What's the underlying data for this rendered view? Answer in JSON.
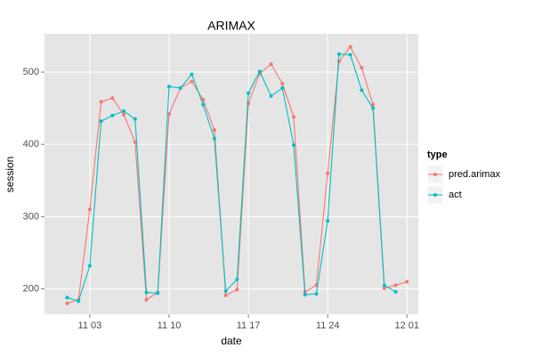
{
  "chart_data": {
    "type": "line",
    "title": "ARIMAX",
    "x_label": "date",
    "y_label": "session",
    "x": [
      "11 01",
      "11 02",
      "11 03",
      "11 04",
      "11 05",
      "11 06",
      "11 07",
      "11 08",
      "11 09",
      "11 10",
      "11 11",
      "11 12",
      "11 13",
      "11 14",
      "11 15",
      "11 16",
      "11 17",
      "11 18",
      "11 19",
      "11 20",
      "11 21",
      "11 22",
      "11 23",
      "11 24",
      "11 25",
      "11 26",
      "11 27",
      "11 28",
      "11 29",
      "11 30",
      "12 01"
    ],
    "series": [
      {
        "name": "pred.arimax",
        "color": "#F8766D",
        "values": [
          180,
          185,
          310,
          459,
          464,
          441,
          403,
          185,
          195,
          442,
          478,
          487,
          462,
          420,
          191,
          199,
          457,
          498,
          511,
          484,
          438,
          196,
          205,
          360,
          515,
          535,
          506,
          455,
          201,
          205,
          210
        ]
      },
      {
        "name": "act",
        "color": "#00BFC4",
        "values": [
          188,
          183,
          232,
          432,
          440,
          446,
          435,
          195,
          194,
          480,
          478,
          497,
          455,
          408,
          197,
          213,
          471,
          501,
          467,
          478,
          399,
          192,
          193,
          294,
          525,
          524,
          475,
          450,
          205,
          196,
          null
        ]
      }
    ],
    "legend_title": "type",
    "xlim": [
      "10 30",
      "12 02"
    ],
    "xticks": [
      "11 03",
      "11 10",
      "11 17",
      "11 24",
      "12 01"
    ],
    "ylim": [
      165,
      553
    ],
    "yticks": [
      200,
      300,
      400,
      500
    ],
    "grid": true,
    "legend": "right"
  }
}
